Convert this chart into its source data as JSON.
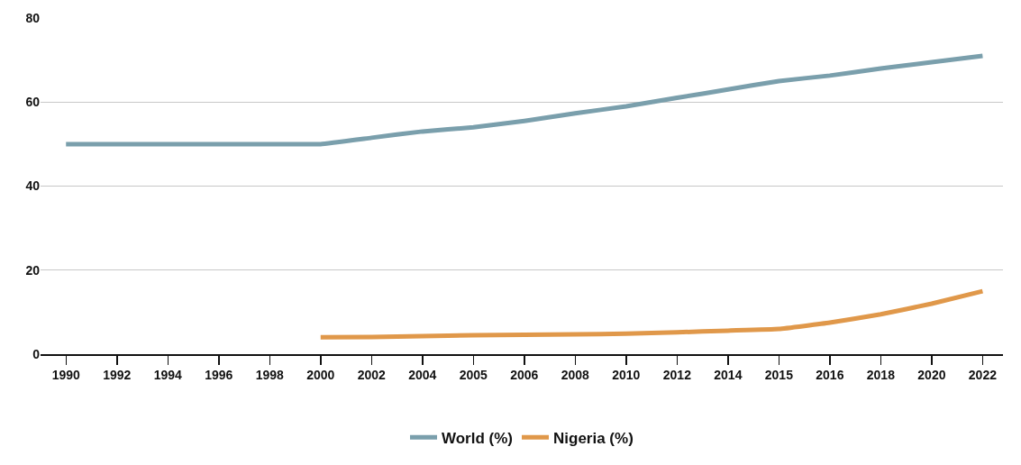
{
  "chart_data": {
    "type": "line",
    "categories": [
      "1990",
      "1992",
      "1994",
      "1996",
      "1998",
      "2000",
      "2002",
      "2004",
      "2005",
      "2006",
      "2008",
      "2010",
      "2012",
      "2014",
      "2015",
      "2016",
      "2018",
      "2020",
      "2022"
    ],
    "series": [
      {
        "name": "World (%)",
        "color": "#7a9fac",
        "values": [
          50,
          50,
          50,
          50,
          50,
          50,
          51.5,
          53,
          54,
          55.5,
          57.3,
          59,
          61,
          63,
          65,
          66.3,
          68,
          69.5,
          71
        ]
      },
      {
        "name": "Nigeria (%)",
        "color": "#e0984a",
        "values": [
          null,
          null,
          null,
          null,
          null,
          4,
          4.1,
          4.3,
          4.5,
          4.6,
          4.7,
          4.9,
          5.2,
          5.6,
          6,
          7.5,
          9.5,
          12,
          15
        ]
      }
    ],
    "ylim": [
      0,
      80
    ],
    "yticks": [
      0,
      20,
      40,
      60,
      80
    ],
    "grid": "y",
    "legend": "bottom",
    "marker": "none",
    "line_style": "solid"
  }
}
